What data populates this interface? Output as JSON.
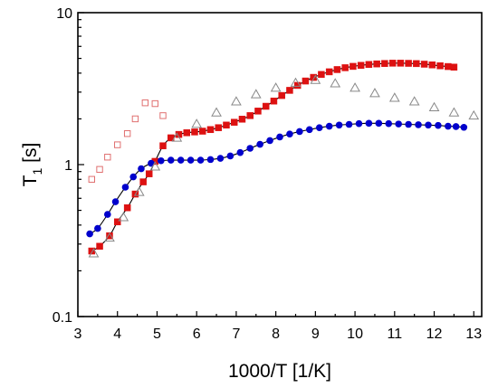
{
  "chart_data": {
    "type": "scatter",
    "title": "",
    "xlabel": "1000/T [1/K]",
    "ylabel_main": "T",
    "ylabel_sub": "1",
    "ylabel_unit": " [s]",
    "xlim": [
      3,
      13.2
    ],
    "ylim": [
      0.1,
      10
    ],
    "yscale": "log",
    "grid": false,
    "x_ticks": [
      3,
      4,
      5,
      6,
      7,
      8,
      9,
      10,
      11,
      12,
      13
    ],
    "x_tick_labels": [
      "3",
      "4",
      "5",
      "6",
      "7",
      "8",
      "9",
      "10",
      "11",
      "12",
      "13"
    ],
    "y_ticks": [
      0.1,
      1,
      10
    ],
    "y_tick_labels": [
      "0.1",
      "1",
      "10"
    ],
    "series": [
      {
        "marker": "square",
        "color": "#dd1111",
        "fill": "filled",
        "fit": true,
        "x": [
          3.35,
          3.55,
          3.8,
          4.0,
          4.25,
          4.45,
          4.65,
          4.8,
          4.95,
          5.15,
          5.35,
          5.55,
          5.75,
          5.95,
          6.15,
          6.35,
          6.55,
          6.75,
          6.95,
          7.15,
          7.35,
          7.55,
          7.75,
          7.95,
          8.15,
          8.35,
          8.55,
          8.75,
          8.95,
          9.15,
          9.35,
          9.55,
          9.75,
          9.95,
          10.15,
          10.35,
          10.55,
          10.75,
          10.95,
          11.15,
          11.35,
          11.55,
          11.75,
          11.95,
          12.15,
          12.35,
          12.5
        ],
        "y": [
          0.27,
          0.29,
          0.34,
          0.42,
          0.52,
          0.64,
          0.77,
          0.87,
          1.05,
          1.33,
          1.5,
          1.58,
          1.62,
          1.64,
          1.66,
          1.7,
          1.75,
          1.82,
          1.9,
          1.99,
          2.1,
          2.25,
          2.42,
          2.62,
          2.85,
          3.08,
          3.32,
          3.55,
          3.75,
          3.92,
          4.08,
          4.22,
          4.34,
          4.43,
          4.5,
          4.56,
          4.6,
          4.63,
          4.65,
          4.65,
          4.64,
          4.62,
          4.58,
          4.53,
          4.47,
          4.42,
          4.38
        ]
      },
      {
        "marker": "circle",
        "color": "#0000cc",
        "fill": "filled",
        "fit": true,
        "x": [
          3.3,
          3.5,
          3.75,
          3.95,
          4.2,
          4.4,
          4.6,
          4.85,
          5.1,
          5.35,
          5.6,
          5.85,
          6.1,
          6.35,
          6.6,
          6.85,
          7.1,
          7.35,
          7.6,
          7.85,
          8.1,
          8.35,
          8.6,
          8.85,
          9.1,
          9.35,
          9.6,
          9.85,
          10.1,
          10.35,
          10.6,
          10.85,
          11.1,
          11.35,
          11.6,
          11.85,
          12.1,
          12.35,
          12.55,
          12.75
        ],
        "y": [
          0.35,
          0.38,
          0.47,
          0.57,
          0.71,
          0.83,
          0.94,
          1.02,
          1.06,
          1.07,
          1.07,
          1.07,
          1.07,
          1.08,
          1.1,
          1.14,
          1.2,
          1.28,
          1.36,
          1.44,
          1.52,
          1.59,
          1.65,
          1.7,
          1.75,
          1.79,
          1.82,
          1.84,
          1.86,
          1.87,
          1.87,
          1.86,
          1.85,
          1.84,
          1.83,
          1.82,
          1.81,
          1.79,
          1.78,
          1.76
        ]
      },
      {
        "marker": "open-square",
        "color": "#e07070",
        "fill": "open",
        "fit": false,
        "x": [
          3.35,
          3.55,
          3.75,
          4.0,
          4.25,
          4.45,
          4.7,
          4.95,
          5.15
        ],
        "y": [
          0.8,
          0.93,
          1.12,
          1.35,
          1.6,
          2.0,
          2.55,
          2.52,
          2.1
        ]
      },
      {
        "marker": "triangle",
        "color": "#888888",
        "fill": "open",
        "fit": false,
        "x": [
          3.4,
          3.8,
          4.15,
          4.55,
          4.95,
          5.5,
          6.0,
          6.5,
          7.0,
          7.5,
          8.0,
          8.5,
          9.0,
          9.5,
          10.0,
          10.5,
          11.0,
          11.5,
          12.0,
          12.5,
          13.0
        ],
        "y": [
          0.26,
          0.33,
          0.45,
          0.66,
          0.97,
          1.5,
          1.85,
          2.2,
          2.6,
          2.9,
          3.2,
          3.45,
          3.6,
          3.42,
          3.2,
          2.95,
          2.75,
          2.6,
          2.38,
          2.2,
          2.1
        ]
      }
    ]
  }
}
